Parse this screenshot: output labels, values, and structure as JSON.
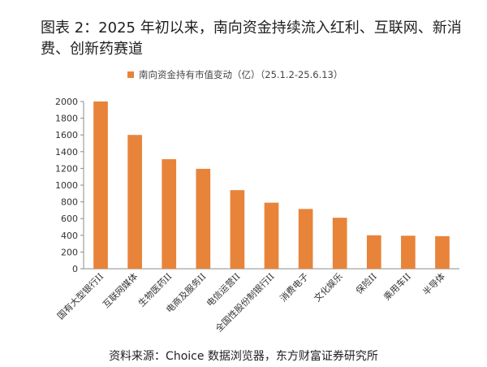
{
  "chart_data": {
    "type": "bar",
    "title": "图表 2：2025 年初以来，南向资金持续流入红利、互联网、新消费、创新药赛道",
    "legend": "南向资金持有市值变动（亿）（25.1.2-25.6.13）",
    "categories": [
      "国有大型银行II",
      "互联网媒体",
      "生物医药II",
      "电商及服务II",
      "电信运营II",
      "全国性股份制银行II",
      "消费电子",
      "文化娱乐",
      "保险II",
      "乘用车II",
      "半导体"
    ],
    "values": [
      2000,
      1600,
      1310,
      1195,
      940,
      790,
      715,
      610,
      400,
      395,
      390
    ],
    "ylim": [
      0,
      2000
    ],
    "yticks": [
      0,
      200,
      400,
      600,
      800,
      1000,
      1200,
      1400,
      1600,
      1800,
      2000
    ],
    "grid": false,
    "legend_position": "top",
    "bar_color": "#E8833A"
  },
  "source": "资料来源：Choice 数据浏览器，东方财富证券研究所"
}
